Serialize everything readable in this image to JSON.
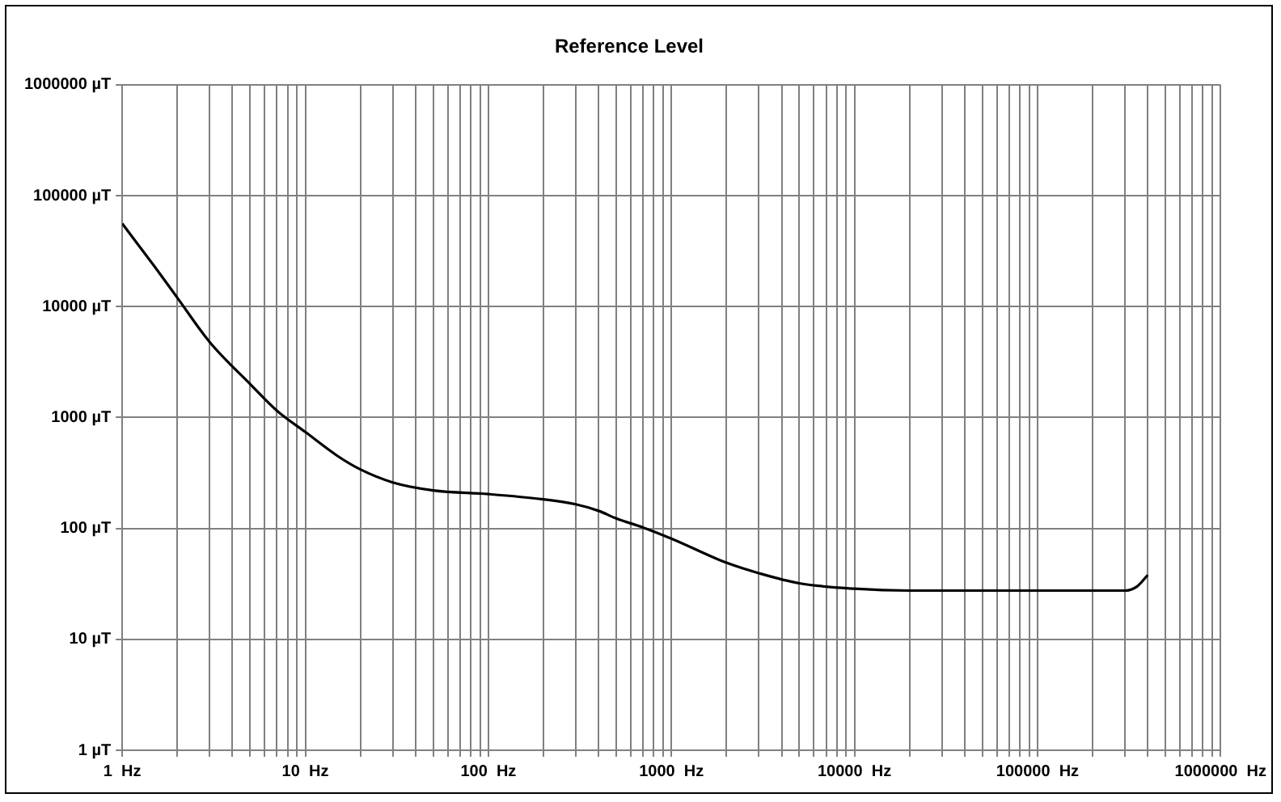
{
  "chart_data": {
    "type": "line",
    "title": "Reference Level",
    "x": [
      1,
      1.5,
      2,
      3,
      5,
      7,
      10,
      15,
      20,
      30,
      50,
      100,
      200,
      300,
      400,
      500,
      700,
      1000,
      2000,
      3000,
      5000,
      10000,
      20000,
      100000,
      300000,
      350000,
      400000
    ],
    "series": [
      {
        "color": "#000000",
        "values": [
          56000,
          23000,
          12000,
          4800,
          2000,
          1150,
          740,
          450,
          340,
          260,
          220,
          204,
          183,
          165,
          144,
          123,
          102,
          81,
          49,
          39.5,
          32,
          28.6,
          27.5,
          27.5,
          27.5,
          30,
          38
        ]
      }
    ],
    "log": "xy",
    "grid": true,
    "legend": false,
    "marker": "none",
    "line_style": "solid",
    "xlim": [
      1,
      1000000
    ],
    "ylim": [
      1,
      1000000
    ],
    "xticks": [
      {
        "value": 1,
        "label": "1  Hz"
      },
      {
        "value": 2,
        "label": null
      },
      {
        "value": 3,
        "label": null
      },
      {
        "value": 4,
        "label": null
      },
      {
        "value": 5,
        "label": null
      },
      {
        "value": 6,
        "label": null
      },
      {
        "value": 7,
        "label": null
      },
      {
        "value": 8,
        "label": null
      },
      {
        "value": 9,
        "label": null
      },
      {
        "value": 10,
        "label": "10  Hz"
      },
      {
        "value": 20,
        "label": null
      },
      {
        "value": 30,
        "label": null
      },
      {
        "value": 40,
        "label": null
      },
      {
        "value": 50,
        "label": null
      },
      {
        "value": 60,
        "label": null
      },
      {
        "value": 70,
        "label": null
      },
      {
        "value": 80,
        "label": null
      },
      {
        "value": 90,
        "label": null
      },
      {
        "value": 100,
        "label": "100  Hz"
      },
      {
        "value": 200,
        "label": null
      },
      {
        "value": 300,
        "label": null
      },
      {
        "value": 400,
        "label": null
      },
      {
        "value": 500,
        "label": null
      },
      {
        "value": 600,
        "label": null
      },
      {
        "value": 700,
        "label": null
      },
      {
        "value": 800,
        "label": null
      },
      {
        "value": 900,
        "label": null
      },
      {
        "value": 1000,
        "label": "1000  Hz"
      },
      {
        "value": 2000,
        "label": null
      },
      {
        "value": 3000,
        "label": null
      },
      {
        "value": 4000,
        "label": null
      },
      {
        "value": 5000,
        "label": null
      },
      {
        "value": 6000,
        "label": null
      },
      {
        "value": 7000,
        "label": null
      },
      {
        "value": 8000,
        "label": null
      },
      {
        "value": 9000,
        "label": null
      },
      {
        "value": 10000,
        "label": "10000  Hz"
      },
      {
        "value": 20000,
        "label": null
      },
      {
        "value": 30000,
        "label": null
      },
      {
        "value": 40000,
        "label": null
      },
      {
        "value": 50000,
        "label": null
      },
      {
        "value": 60000,
        "label": null
      },
      {
        "value": 70000,
        "label": null
      },
      {
        "value": 80000,
        "label": null
      },
      {
        "value": 90000,
        "label": null
      },
      {
        "value": 100000,
        "label": "100000  Hz"
      },
      {
        "value": 200000,
        "label": null
      },
      {
        "value": 300000,
        "label": null
      },
      {
        "value": 400000,
        "label": null
      },
      {
        "value": 500000,
        "label": null
      },
      {
        "value": 600000,
        "label": null
      },
      {
        "value": 700000,
        "label": null
      },
      {
        "value": 800000,
        "label": null
      },
      {
        "value": 900000,
        "label": null
      },
      {
        "value": 1000000,
        "label": "1000000  Hz"
      }
    ],
    "yticks": [
      {
        "value": 1,
        "label": "1 µT"
      },
      {
        "value": 10,
        "label": "10 µT"
      },
      {
        "value": 100,
        "label": "100 µT"
      },
      {
        "value": 1000,
        "label": "1000 µT"
      },
      {
        "value": 10000,
        "label": "10000 µT"
      },
      {
        "value": 100000,
        "label": "100000 µT"
      },
      {
        "value": 1000000,
        "label": "1000000 µT"
      }
    ]
  }
}
